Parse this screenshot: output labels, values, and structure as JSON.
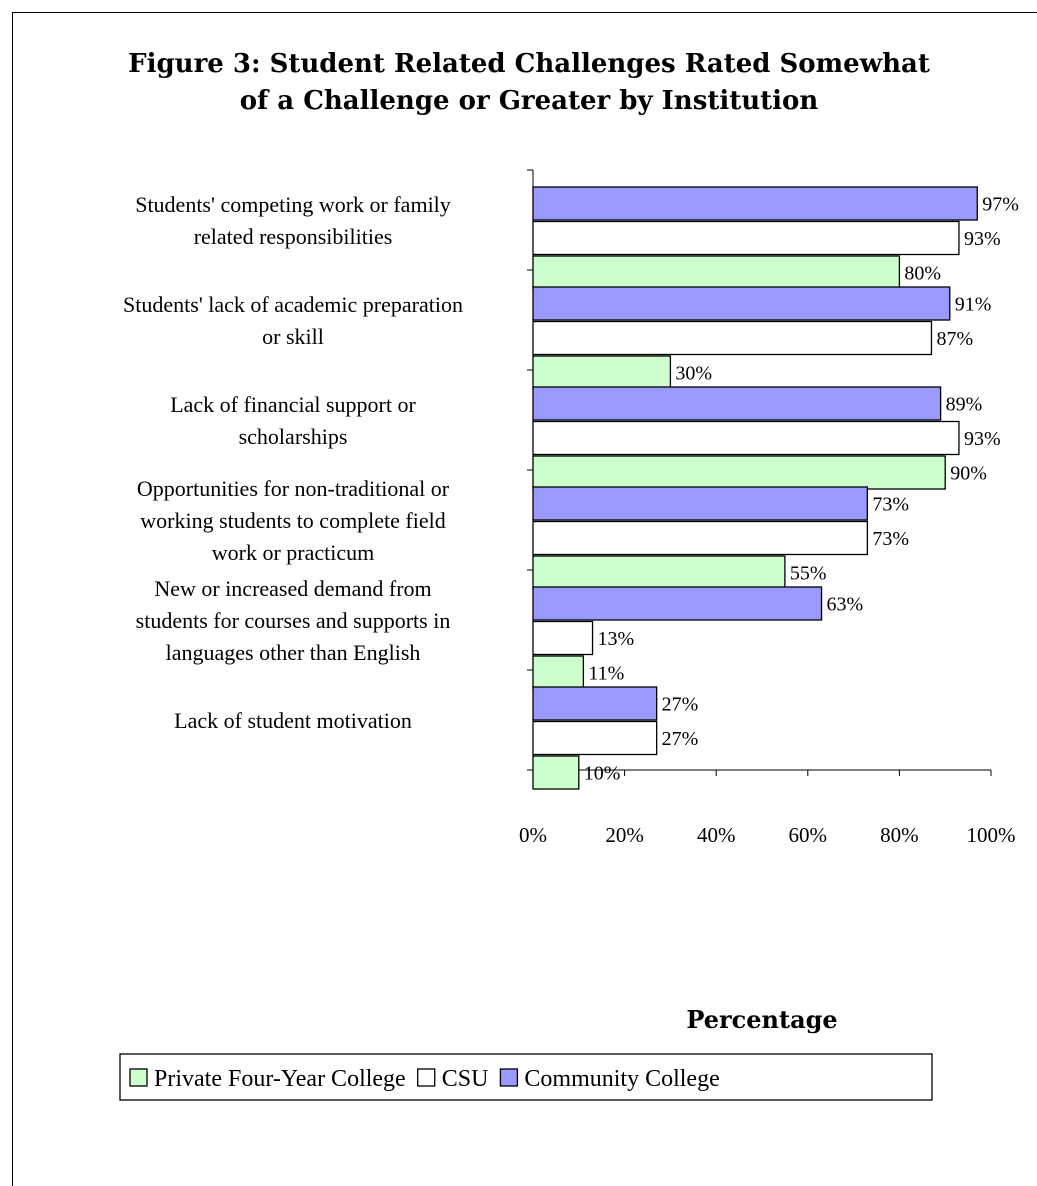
{
  "chart_data": {
    "type": "bar",
    "orientation": "horizontal",
    "title": [
      "Figure 3: Student Related Challenges Rated Somewhat",
      "of a Challenge or Greater by Institution"
    ],
    "categories": [
      [
        "Students' competing work or family",
        "related responsibilities"
      ],
      [
        "Students' lack of academic preparation",
        "or skill"
      ],
      [
        "Lack of financial support or",
        "scholarships"
      ],
      [
        "Opportunities for non-traditional or",
        "working students to complete field",
        "work or practicum"
      ],
      [
        "New or increased demand from",
        "students for courses and supports in",
        "languages other than English"
      ],
      [
        "Lack of student motivation"
      ]
    ],
    "series": [
      {
        "name": "Community College",
        "color": "#9999FF",
        "values": [
          97,
          91,
          89,
          73,
          63,
          27
        ]
      },
      {
        "name": "CSU",
        "color": "#FFFFFF",
        "values": [
          93,
          87,
          93,
          73,
          13,
          27
        ]
      },
      {
        "name": "Private Four-Year College",
        "color": "#CCFFCC",
        "values": [
          80,
          30,
          90,
          55,
          11,
          10
        ]
      }
    ],
    "legend_order": [
      "Private Four-Year College",
      "CSU",
      "Community College"
    ],
    "xlabel": "Percentage",
    "xlim": [
      0,
      100
    ],
    "x_ticks": [
      0,
      20,
      40,
      60,
      80,
      100
    ],
    "tick_labels": [
      "0%",
      "20%",
      "40%",
      "60%",
      "80%",
      "100%"
    ],
    "value_suffix": "%",
    "grid": false,
    "legend_position": "bottom"
  }
}
